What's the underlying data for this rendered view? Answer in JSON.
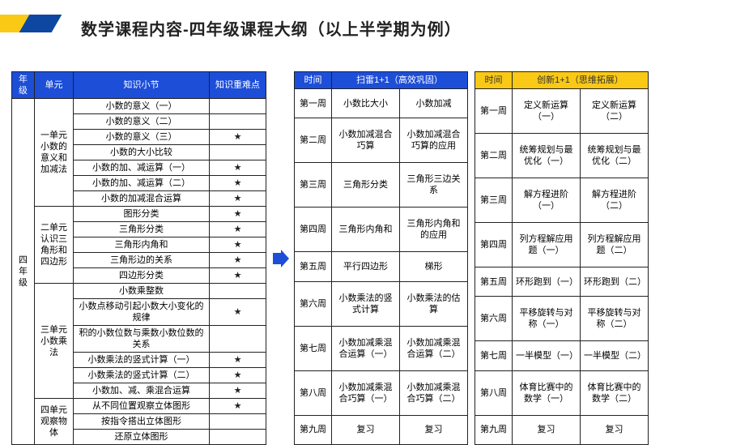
{
  "title": "数学课程内容-四年级课程大纲（以上半学期为例）",
  "table1": {
    "headers": {
      "grade": "年级",
      "unit": "单元",
      "topic": "知识小节",
      "kd": "知识重难点"
    },
    "grade_label": "四年级",
    "units": [
      {
        "name": "一单元小数的意义和加减法",
        "rows": [
          {
            "t": "小数的意义（一）",
            "s": ""
          },
          {
            "t": "小数的意义（二）",
            "s": ""
          },
          {
            "t": "小数的意义（三）",
            "s": "★"
          },
          {
            "t": "小数的大小比较",
            "s": ""
          },
          {
            "t": "小数的加、减运算（一）",
            "s": "★"
          },
          {
            "t": "小数的加、减运算（二）",
            "s": "★"
          },
          {
            "t": "小数的加减混合运算",
            "s": "★"
          }
        ]
      },
      {
        "name": "二单元认识三角形和四边形",
        "rows": [
          {
            "t": "图形分类",
            "s": "★"
          },
          {
            "t": "三角形分类",
            "s": "★"
          },
          {
            "t": "三角形内角和",
            "s": "★"
          },
          {
            "t": "三角形边的关系",
            "s": "★"
          },
          {
            "t": "四边形分类",
            "s": "★"
          }
        ]
      },
      {
        "name": "三单元小数乘法",
        "rows": [
          {
            "t": "小数乘整数",
            "s": ""
          },
          {
            "t": "小数点移动引起小数大小变化的规律",
            "s": "★"
          },
          {
            "t": "积的小数位数与乘数小数位数的关系",
            "s": ""
          },
          {
            "t": "小数乘法的竖式计算（一）",
            "s": "★"
          },
          {
            "t": "小数乘法的竖式计算（二）",
            "s": "★"
          },
          {
            "t": "小数加、减、乘混合运算",
            "s": "★"
          }
        ]
      },
      {
        "name": "四单元观察物体",
        "rows": [
          {
            "t": "从不同位置观察立体图形",
            "s": "★"
          },
          {
            "t": "按指令搭出立体图形",
            "s": ""
          },
          {
            "t": "还原立体图形",
            "s": ""
          }
        ]
      }
    ]
  },
  "table2": {
    "headers": {
      "wk": "时间",
      "c": "扫雷1+1（高效巩固）"
    },
    "rows": [
      {
        "w": "第一周",
        "a": "小数比大小",
        "b": "小数加减"
      },
      {
        "w": "第二周",
        "a": "小数加减混合巧算",
        "b": "小数加减混合巧算的应用"
      },
      {
        "w": "第三周",
        "a": "三角形分类",
        "b": "三角形三边关系"
      },
      {
        "w": "第四周",
        "a": "三角形内角和",
        "b": "三角形内角和的应用"
      },
      {
        "w": "第五周",
        "a": "平行四边形",
        "b": "梯形"
      },
      {
        "w": "第六周",
        "a": "小数乘法的竖式计算",
        "b": "小数乘法的估算"
      },
      {
        "w": "第七周",
        "a": "小数加减乘混合运算（一）",
        "b": "小数加减乘混合运算（二）"
      },
      {
        "w": "第八周",
        "a": "小数加减乘混合巧算（一）",
        "b": "小数加减乘混合巧算（二）"
      },
      {
        "w": "第九周",
        "a": "复习",
        "b": "复习"
      }
    ]
  },
  "table3": {
    "headers": {
      "wk": "时间",
      "c": "创新1+1（思维拓展）"
    },
    "rows": [
      {
        "w": "第一周",
        "a": "定义新运算（一）",
        "b": "定义新运算（二）"
      },
      {
        "w": "第二周",
        "a": "统筹规划与最优化（一）",
        "b": "统筹规划与最优化（二）"
      },
      {
        "w": "第三周",
        "a": "解方程进阶（一）",
        "b": "解方程进阶（二）"
      },
      {
        "w": "第四周",
        "a": "列方程解应用题（一）",
        "b": "列方程解应用题（二）"
      },
      {
        "w": "第五周",
        "a": "环形跑到（一）",
        "b": "环形跑到（二）"
      },
      {
        "w": "第六周",
        "a": "平移旋转与对称（一）",
        "b": "平移旋转与对称（二）"
      },
      {
        "w": "第七周",
        "a": "一半模型（一）",
        "b": "一半模型（二）"
      },
      {
        "w": "第八周",
        "a": "体育比赛中的数学（一）",
        "b": "体育比赛中的数学（二）"
      },
      {
        "w": "第九周",
        "a": "复习",
        "b": "复习"
      }
    ]
  },
  "style": {
    "header_blue": "#1d4ed8",
    "header_yellow": "#f9c916",
    "border": "#222222",
    "fontsize_title": 20,
    "fontsize_cell": 11
  }
}
